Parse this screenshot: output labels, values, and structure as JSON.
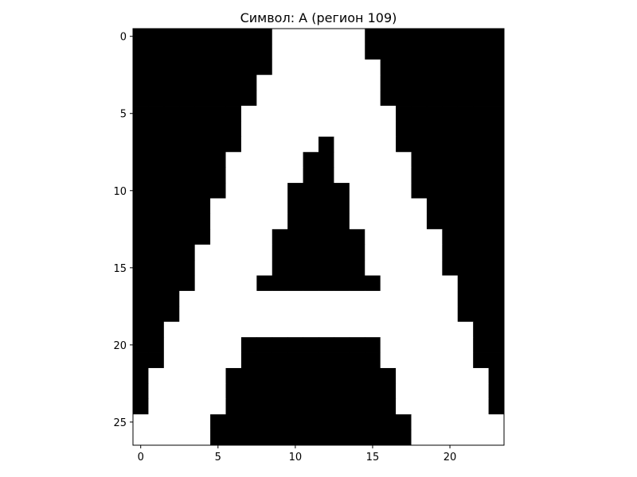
{
  "chart_data": {
    "type": "heatmap",
    "title": "Символ: А (регион 109)",
    "xlabel": "",
    "ylabel": "",
    "grid": false,
    "colormap": {
      "0": "#000000",
      "1": "#ffffff"
    },
    "xlim": [
      -0.5,
      23.5
    ],
    "ylim": [
      26.5,
      -0.5
    ],
    "x_ticks": [
      0,
      5,
      10,
      15,
      20
    ],
    "y_ticks": [
      0,
      5,
      10,
      15,
      20,
      25
    ],
    "x_tick_labels": [
      "0",
      "5",
      "10",
      "15",
      "20"
    ],
    "y_tick_labels": [
      "0",
      "5",
      "10",
      "15",
      "20",
      "25"
    ],
    "rows": [
      "000000000111111000000000",
      "000000000111111000000000",
      "000000000111111100000000",
      "000000001111111100000000",
      "000000001111111100000000",
      "000000011111111110000000",
      "000000011111111110000000",
      "000000011111011110000000",
      "000000111110011111000000",
      "000000111110011111000000",
      "000000111100001111000000",
      "000001111100001111100000",
      "000001111100001111100000",
      "000001111000000111110000",
      "000011111000000111110000",
      "000011111000000111110000",
      "000011110000000011111000",
      "000111111111111111111000",
      "000111111111111111111000",
      "001111111111111111111100",
      "001111100000000011111100",
      "001111100000000011111100",
      "011111000000000001111110",
      "011111000000000001111110",
      "011111000000000001111110",
      "111110000000000000111111",
      "111110000000000000111111"
    ]
  }
}
